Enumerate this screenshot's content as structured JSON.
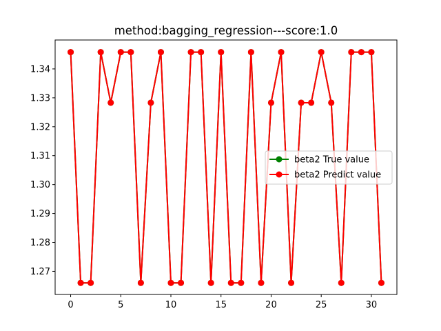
{
  "chart_data": {
    "type": "line",
    "title": "method:bagging_regression---score:1.0",
    "xlabel": "",
    "ylabel": "",
    "xlim": [
      -1.55,
      32.55
    ],
    "ylim": [
      1.262,
      1.35
    ],
    "x_ticks": [
      0,
      5,
      10,
      15,
      20,
      25,
      30
    ],
    "y_ticks": [
      1.27,
      1.28,
      1.29,
      1.3,
      1.31,
      1.32,
      1.33,
      1.34
    ],
    "y_tick_labels": [
      "1.27",
      "1.28",
      "1.29",
      "1.30",
      "1.31",
      "1.32",
      "1.33",
      "1.34"
    ],
    "x": [
      0,
      1,
      2,
      3,
      4,
      5,
      6,
      7,
      8,
      9,
      10,
      11,
      12,
      13,
      14,
      15,
      16,
      17,
      18,
      19,
      20,
      21,
      22,
      23,
      24,
      25,
      26,
      27,
      28,
      29,
      30,
      31
    ],
    "series": [
      {
        "name": "beta2 True value",
        "color": "#008000",
        "marker": "circle",
        "values": [
          1.3458,
          1.266,
          1.266,
          1.3458,
          1.3283,
          1.3458,
          1.3458,
          1.266,
          1.3283,
          1.3458,
          1.266,
          1.266,
          1.3458,
          1.3458,
          1.266,
          1.3458,
          1.266,
          1.266,
          1.3458,
          1.266,
          1.3283,
          1.3458,
          1.266,
          1.3283,
          1.3283,
          1.3458,
          1.3283,
          1.266,
          1.3458,
          1.3458,
          1.3458,
          1.266
        ]
      },
      {
        "name": "beta2 Predict value",
        "color": "#ff0000",
        "marker": "circle",
        "values": [
          1.3458,
          1.266,
          1.266,
          1.3458,
          1.3283,
          1.3458,
          1.3458,
          1.266,
          1.3283,
          1.3458,
          1.266,
          1.266,
          1.3458,
          1.3458,
          1.266,
          1.3458,
          1.266,
          1.266,
          1.3458,
          1.266,
          1.3283,
          1.3458,
          1.266,
          1.3283,
          1.3283,
          1.3458,
          1.3283,
          1.266,
          1.3458,
          1.3458,
          1.3458,
          1.266
        ]
      }
    ],
    "legend_position": "center-right",
    "grid": false
  }
}
